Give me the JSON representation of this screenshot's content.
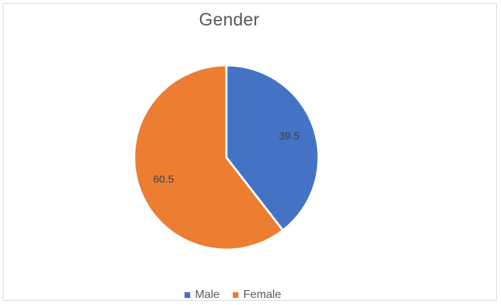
{
  "chart_data": {
    "type": "pie",
    "title": "Gender",
    "categories": [
      "Male",
      "Female"
    ],
    "values": [
      39.5,
      60.5
    ],
    "colors": [
      "#4472c4",
      "#ed7d31"
    ],
    "data_labels": [
      "39.5",
      "60.5"
    ],
    "legend_position": "bottom"
  }
}
